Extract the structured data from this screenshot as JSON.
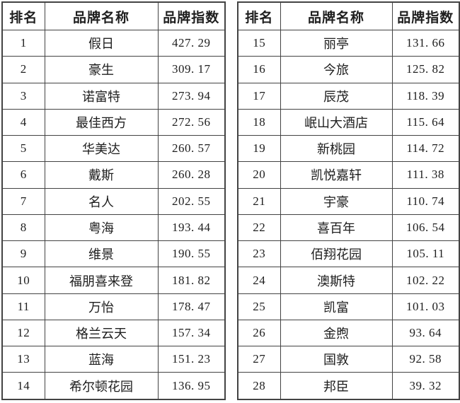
{
  "styles": {
    "border_color": "#434343",
    "text_color": "#1e1e1e",
    "background": "#ffffff"
  },
  "tables": [
    {
      "name": "brand-index-ranks-1-14",
      "headers": [
        "排名",
        "品牌名称",
        "品牌指数"
      ],
      "rows": [
        [
          "1",
          "假日",
          "427. 29"
        ],
        [
          "2",
          "豪生",
          "309. 17"
        ],
        [
          "3",
          "诺富特",
          "273. 94"
        ],
        [
          "4",
          "最佳西方",
          "272. 56"
        ],
        [
          "5",
          "华美达",
          "260. 57"
        ],
        [
          "6",
          "戴斯",
          "260. 28"
        ],
        [
          "7",
          "名人",
          "202. 55"
        ],
        [
          "8",
          "粤海",
          "193. 44"
        ],
        [
          "9",
          "维景",
          "190. 55"
        ],
        [
          "10",
          "福朋喜来登",
          "181. 82"
        ],
        [
          "11",
          "万怡",
          "178. 47"
        ],
        [
          "12",
          "格兰云天",
          "157. 34"
        ],
        [
          "13",
          "蓝海",
          "151. 23"
        ],
        [
          "14",
          "希尔顿花园",
          "136. 95"
        ]
      ]
    },
    {
      "name": "brand-index-ranks-15-28",
      "headers": [
        "排名",
        "品牌名称",
        "品牌指数"
      ],
      "rows": [
        [
          "15",
          "丽亭",
          "131. 66"
        ],
        [
          "16",
          "今旅",
          "125. 82"
        ],
        [
          "17",
          "辰茂",
          "118. 39"
        ],
        [
          "18",
          "岷山大酒店",
          "115. 64"
        ],
        [
          "19",
          "新桃园",
          "114. 72"
        ],
        [
          "20",
          "凯悦嘉轩",
          "111. 38"
        ],
        [
          "21",
          "宇豪",
          "110. 74"
        ],
        [
          "22",
          "喜百年",
          "106. 54"
        ],
        [
          "23",
          "佰翔花园",
          "105. 11"
        ],
        [
          "24",
          "澳斯特",
          "102. 22"
        ],
        [
          "25",
          "凯富",
          "101. 03"
        ],
        [
          "26",
          "金煦",
          "93. 64"
        ],
        [
          "27",
          "国敦",
          "92. 58"
        ],
        [
          "28",
          "邦臣",
          "39. 32"
        ]
      ]
    }
  ]
}
